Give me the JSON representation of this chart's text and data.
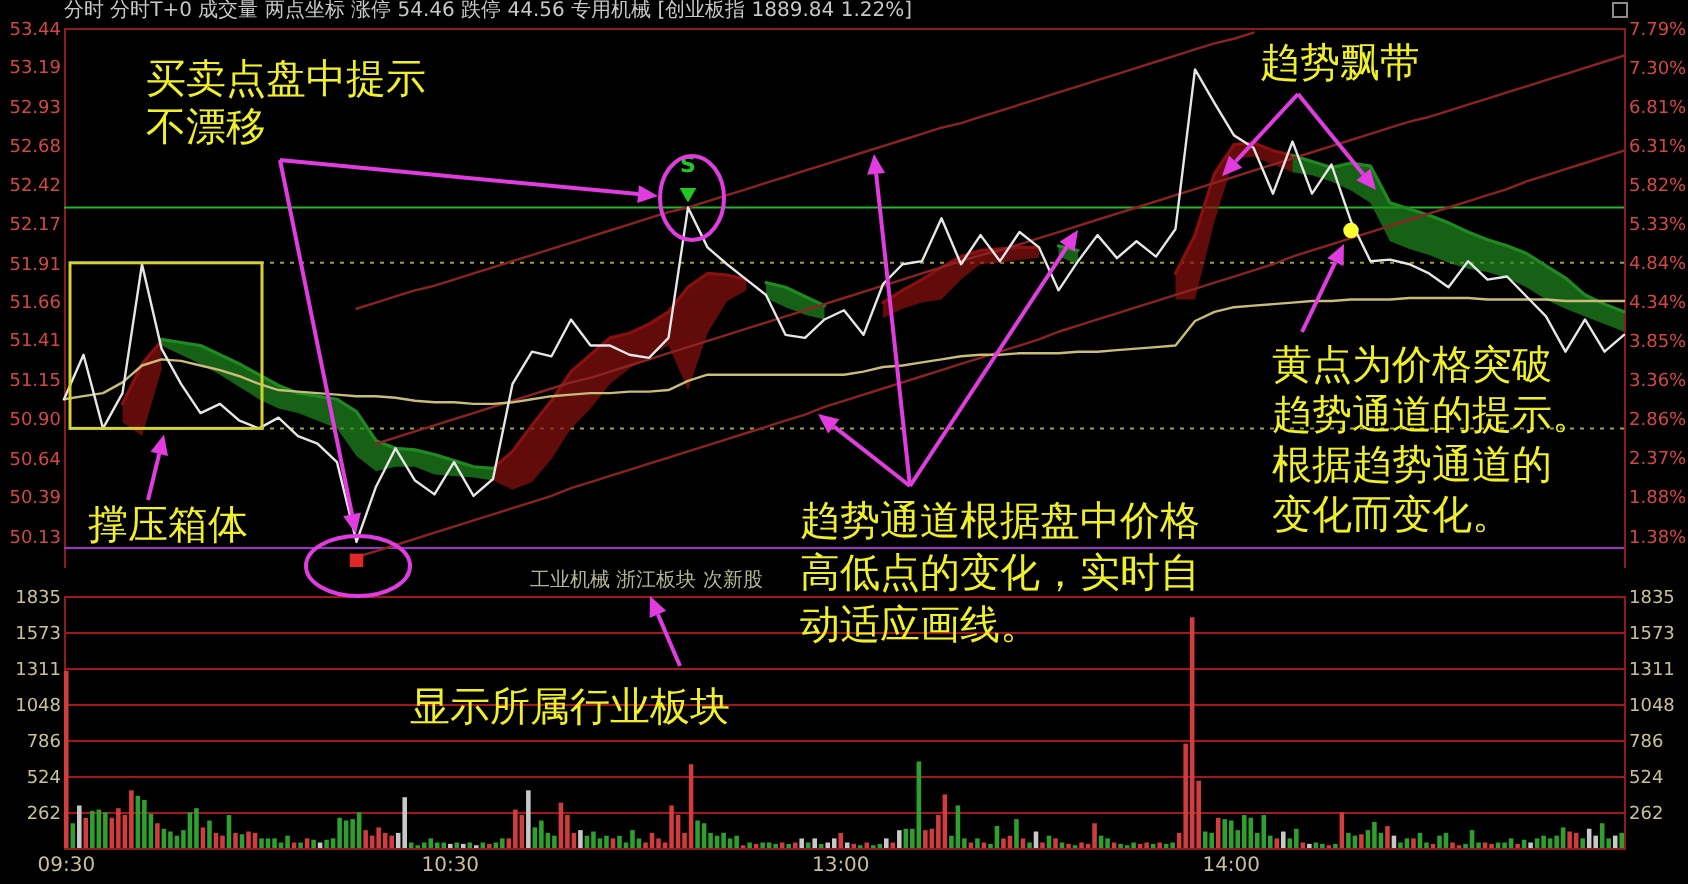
{
  "chart_data": [
    {
      "type": "line",
      "title": "分时 分时T+0 成交量 两点坐标 涨停 54.46 跌停 44.56 专用机械 [创业板指 1889.84 1.22%]",
      "categories": [
        null,
        null,
        null,
        null,
        null,
        null,
        null,
        null,
        null,
        null,
        null,
        null,
        null,
        null,
        null,
        null,
        null,
        null,
        null,
        null,
        null,
        null,
        null,
        null,
        null,
        null,
        null,
        null,
        null,
        null,
        null,
        null,
        null,
        null,
        null,
        null,
        null,
        null,
        null,
        null,
        null,
        null,
        null,
        null,
        null,
        null,
        null,
        null,
        null,
        null,
        null,
        null,
        null,
        null,
        null,
        null,
        null,
        null,
        null,
        null,
        null,
        null,
        null,
        null,
        null,
        null,
        null,
        null,
        null,
        null,
        null,
        null,
        null,
        null,
        null,
        null,
        null,
        null,
        null,
        null,
        null
      ],
      "ylim": [
        49.92,
        53.44
      ],
      "yticks": [
        50.13,
        50.39,
        50.64,
        {
          "value": 50.9,
          "label": "50.90"
        },
        51.15,
        51.41,
        51.66,
        51.91,
        52.17,
        52.42,
        52.68,
        52.93,
        53.19,
        53.44
      ],
      "y2lim": [
        0.97,
        7.79
      ],
      "y2ticks": [
        {
          "value": 1.38,
          "label": "1.38%"
        },
        {
          "value": 1.88,
          "label": "1.88%"
        },
        {
          "value": 2.37,
          "label": "2.37%"
        },
        {
          "value": 2.86,
          "label": "2.86%"
        },
        {
          "value": 3.36,
          "label": "3.36%"
        },
        {
          "value": 3.85,
          "label": "3.85%"
        },
        {
          "value": 4.34,
          "label": "4.34%"
        },
        {
          "value": 4.84,
          "label": "4.84%"
        },
        {
          "value": 5.33,
          "label": "5.33%"
        },
        {
          "value": 5.82,
          "label": "5.82%"
        },
        {
          "value": 6.31,
          "label": "6.31%"
        },
        {
          "value": 6.81,
          "label": "6.81%"
        },
        {
          "value": 7.3,
          "label": "7.30%"
        },
        {
          "value": 7.79,
          "label": "7.79%"
        }
      ],
      "tick_labels": "y",
      "series": [
        {
          "color": "#8a1010",
          "values": [
            null,
            null,
            null,
            50.99,
            51.25,
            51.4,
            null,
            null,
            null,
            null,
            null,
            null,
            null,
            null,
            null,
            null,
            null,
            null,
            null,
            null,
            null,
            null,
            50.57,
            50.68,
            50.85,
            51.01,
            51.2,
            51.31,
            51.42,
            51.45,
            51.51,
            51.59,
            51.75,
            51.84,
            51.83,
            51.8,
            null,
            null,
            null,
            null,
            null,
            null,
            51.65,
            51.73,
            51.8,
            51.88,
            51.95,
            51.99,
            52.0,
            52.01,
            52.01,
            null,
            null,
            null,
            null,
            null,
            null,
            51.84,
            52.09,
            52.49,
            52.68,
            52.69,
            52.64,
            52.61,
            null,
            null,
            null,
            null,
            null,
            null,
            null,
            null,
            null,
            null,
            null,
            null,
            null,
            null,
            null,
            null,
            null
          ],
          "upper": [
            null,
            null,
            null,
            50.99,
            51.25,
            51.4,
            null,
            null,
            null,
            null,
            null,
            null,
            null,
            null,
            null,
            null,
            null,
            null,
            null,
            null,
            null,
            null,
            50.57,
            50.68,
            50.85,
            51.01,
            51.2,
            51.31,
            51.42,
            51.45,
            51.51,
            51.59,
            51.75,
            51.84,
            51.83,
            51.8,
            null,
            null,
            null,
            null,
            null,
            null,
            51.65,
            51.73,
            51.8,
            51.88,
            51.95,
            51.99,
            52.0,
            52.01,
            52.01,
            null,
            null,
            null,
            null,
            null,
            null,
            51.84,
            52.09,
            52.49,
            52.68,
            52.69,
            52.64,
            52.61,
            null,
            null,
            null,
            null,
            null,
            null,
            null,
            null,
            null,
            null,
            null,
            null,
            null,
            null,
            null,
            null,
            null
          ],
          "lower": [
            null,
            null,
            null,
            50.87,
            50.78,
            51.21,
            null,
            null,
            null,
            null,
            null,
            null,
            null,
            null,
            null,
            null,
            null,
            null,
            null,
            null,
            null,
            null,
            50.49,
            50.43,
            50.48,
            50.63,
            50.83,
            50.96,
            51.12,
            51.22,
            51.3,
            51.37,
            51.08,
            51.45,
            51.66,
            51.73,
            null,
            null,
            null,
            null,
            null,
            null,
            51.55,
            51.61,
            51.65,
            51.67,
            51.8,
            51.9,
            51.91,
            51.93,
            51.94,
            null,
            null,
            null,
            null,
            null,
            null,
            51.67,
            51.67,
            52.18,
            52.59,
            52.6,
            52.55,
            52.5,
            null,
            null,
            null,
            null,
            null,
            null,
            null,
            null,
            null,
            null,
            null,
            null,
            null,
            null,
            null,
            null,
            null
          ]
        },
        {
          "color": "#1f8a1f",
          "values": [
            null,
            null,
            null,
            null,
            null,
            51.41,
            51.39,
            51.37,
            51.31,
            51.25,
            51.18,
            51.11,
            51.06,
            51.04,
            51.02,
            50.94,
            50.75,
            50.7,
            50.69,
            50.66,
            50.62,
            50.58,
            50.57,
            null,
            null,
            null,
            null,
            null,
            null,
            null,
            null,
            null,
            null,
            null,
            null,
            null,
            51.78,
            51.75,
            51.69,
            51.63,
            null,
            null,
            null,
            null,
            null,
            null,
            null,
            null,
            null,
            null,
            null,
            52.02,
            51.99,
            null,
            null,
            null,
            null,
            null,
            null,
            null,
            null,
            null,
            null,
            52.61,
            52.57,
            52.53,
            52.56,
            52.54,
            52.3,
            52.26,
            52.22,
            52.17,
            52.11,
            52.06,
            52.02,
            51.97,
            51.89,
            51.81,
            51.7,
            51.64,
            51.59
          ],
          "upper": [
            null,
            null,
            null,
            null,
            null,
            51.41,
            51.39,
            51.37,
            51.31,
            51.25,
            51.18,
            51.11,
            51.06,
            51.04,
            51.02,
            50.94,
            50.75,
            50.7,
            50.69,
            50.66,
            50.62,
            50.58,
            50.57,
            null,
            null,
            null,
            null,
            null,
            null,
            null,
            null,
            null,
            null,
            null,
            null,
            null,
            51.78,
            51.75,
            51.69,
            51.63,
            null,
            null,
            null,
            null,
            null,
            null,
            null,
            null,
            null,
            null,
            null,
            52.02,
            51.99,
            null,
            null,
            null,
            null,
            null,
            null,
            null,
            null,
            null,
            null,
            52.61,
            52.57,
            52.53,
            52.56,
            52.54,
            52.3,
            52.26,
            52.22,
            52.17,
            52.11,
            52.06,
            52.02,
            51.97,
            51.89,
            51.81,
            51.7,
            51.64,
            51.59
          ],
          "lower": [
            null,
            null,
            null,
            null,
            null,
            51.37,
            51.31,
            51.25,
            51.18,
            51.1,
            51.02,
            50.96,
            50.93,
            50.88,
            50.83,
            50.65,
            50.55,
            50.58,
            50.58,
            50.53,
            50.52,
            50.51,
            50.49,
            null,
            null,
            null,
            null,
            null,
            null,
            null,
            null,
            null,
            null,
            null,
            null,
            null,
            51.68,
            51.62,
            51.57,
            51.54,
            null,
            null,
            null,
            null,
            null,
            null,
            null,
            null,
            null,
            null,
            null,
            51.95,
            51.9,
            null,
            null,
            null,
            null,
            null,
            null,
            null,
            null,
            null,
            null,
            52.5,
            52.48,
            52.44,
            52.38,
            52.3,
            52.05,
            52.0,
            51.96,
            51.91,
            51.87,
            51.85,
            51.81,
            51.75,
            51.67,
            51.61,
            51.56,
            51.51,
            51.46
          ]
        },
        {
          "color": "#8c2323",
          "values": [
            null,
            null,
            null,
            null,
            null,
            null,
            null,
            null,
            null,
            null,
            null,
            null,
            null,
            null,
            null,
            51.61,
            51.65,
            51.69,
            51.73,
            51.76,
            51.8,
            51.84,
            51.88,
            51.92,
            51.96,
            52.0,
            52.04,
            52.08,
            52.12,
            52.16,
            52.2,
            52.24,
            52.27,
            52.31,
            52.35,
            52.39,
            52.43,
            52.47,
            52.51,
            52.55,
            52.59,
            52.63,
            52.67,
            52.71,
            52.75,
            52.79,
            52.82,
            52.86,
            52.9,
            52.94,
            52.98,
            53.02,
            53.06,
            53.1,
            53.14,
            53.18,
            53.22,
            53.26,
            53.3,
            53.34,
            53.37,
            53.41,
            null,
            null,
            null,
            null,
            null,
            null,
            null,
            null,
            null,
            null,
            null,
            null,
            null,
            null,
            null,
            null,
            null,
            null,
            null
          ]
        },
        {
          "color": "#8c2323",
          "values": [
            null,
            null,
            null,
            null,
            null,
            null,
            null,
            null,
            null,
            null,
            null,
            null,
            null,
            null,
            null,
            null,
            50.73,
            50.77,
            50.81,
            50.85,
            50.89,
            50.93,
            50.97,
            51.01,
            51.05,
            51.09,
            51.13,
            51.16,
            51.2,
            51.24,
            51.28,
            51.32,
            51.36,
            51.4,
            51.44,
            51.48,
            51.52,
            51.56,
            51.6,
            51.64,
            51.68,
            51.72,
            51.76,
            51.8,
            51.84,
            51.88,
            51.92,
            51.96,
            51.99,
            52.03,
            52.07,
            52.11,
            52.15,
            52.19,
            52.23,
            52.27,
            52.31,
            52.35,
            52.39,
            52.43,
            52.47,
            52.51,
            52.55,
            52.59,
            52.63,
            52.67,
            52.71,
            52.75,
            52.79,
            52.83,
            52.86,
            52.9,
            52.94,
            52.98,
            53.02,
            53.06,
            53.1,
            53.14,
            53.18,
            53.22,
            53.26
          ]
        },
        {
          "color": "#8c2323",
          "values": [
            null,
            null,
            null,
            null,
            null,
            null,
            null,
            null,
            null,
            null,
            null,
            null,
            null,
            null,
            null,
            49.99,
            50.03,
            50.07,
            50.11,
            50.15,
            50.19,
            50.23,
            50.27,
            50.31,
            50.35,
            50.39,
            50.44,
            50.48,
            50.52,
            50.56,
            50.6,
            50.64,
            50.68,
            50.72,
            50.76,
            50.8,
            50.84,
            50.88,
            50.92,
            50.97,
            51.01,
            51.05,
            51.09,
            51.13,
            51.17,
            51.21,
            51.25,
            51.29,
            51.33,
            51.37,
            51.41,
            51.46,
            51.5,
            51.54,
            51.58,
            51.62,
            51.66,
            51.7,
            51.74,
            51.78,
            51.82,
            51.86,
            51.9,
            51.95,
            51.99,
            52.03,
            52.07,
            52.11,
            52.15,
            52.19,
            52.23,
            52.27,
            52.31,
            52.35,
            52.39,
            52.44,
            52.48,
            52.52,
            52.56,
            52.6,
            52.64
          ]
        },
        {
          "color": "#c8bc78",
          "values": [
            51.02,
            51.04,
            51.06,
            51.13,
            51.24,
            51.28,
            51.27,
            51.24,
            51.21,
            51.17,
            51.12,
            51.08,
            51.07,
            51.06,
            51.05,
            51.04,
            51.04,
            51.03,
            51.01,
            51.0,
            51.0,
            50.99,
            50.99,
            51.0,
            51.02,
            51.04,
            51.05,
            51.06,
            51.06,
            51.07,
            51.07,
            51.08,
            51.14,
            51.18,
            51.18,
            51.18,
            51.18,
            51.18,
            51.18,
            51.18,
            51.18,
            51.2,
            51.23,
            51.24,
            51.26,
            51.28,
            51.3,
            51.31,
            51.31,
            51.32,
            51.32,
            51.32,
            51.33,
            51.33,
            51.34,
            51.35,
            51.36,
            51.37,
            51.53,
            51.59,
            51.62,
            51.63,
            51.64,
            51.65,
            51.66,
            51.66,
            51.67,
            51.67,
            51.67,
            51.68,
            51.68,
            51.68,
            51.68,
            51.67,
            51.67,
            51.67,
            51.67,
            51.66,
            51.66,
            51.66,
            51.66
          ]
        },
        {
          "color": "#e6e6e6",
          "values": [
            51.02,
            51.31,
            50.83,
            51.06,
            51.9,
            51.35,
            51.12,
            50.93,
            50.99,
            50.88,
            50.83,
            50.9,
            50.78,
            50.73,
            50.61,
            50.09,
            50.45,
            50.7,
            50.49,
            50.4,
            50.61,
            50.39,
            50.5,
            51.12,
            51.33,
            51.3,
            51.54,
            51.37,
            51.37,
            51.31,
            51.29,
            51.42,
            52.27,
            52.01,
            51.9,
            51.8,
            51.7,
            51.44,
            51.42,
            51.54,
            51.6,
            51.44,
            51.77,
            51.9,
            51.92,
            52.2,
            51.9,
            52.09,
            51.92,
            52.11,
            52.01,
            51.73,
            51.92,
            52.09,
            51.94,
            52.05,
            51.95,
            52.13,
            53.17,
            52.95,
            52.74,
            52.66,
            52.36,
            52.7,
            52.36,
            52.55,
            52.18,
            51.92,
            51.93,
            51.9,
            51.84,
            51.75,
            51.92,
            51.8,
            51.82,
            51.69,
            51.56,
            51.33,
            51.54,
            51.33,
            51.44
          ]
        },
        {
          "type": "scatter",
          "color": "#22c822",
          "marker": "triangle",
          "values": [
            null,
            null,
            null,
            null,
            null,
            null,
            null,
            null,
            null,
            null,
            null,
            null,
            null,
            null,
            null,
            null,
            null,
            null,
            null,
            null,
            null,
            null,
            null,
            null,
            null,
            null,
            null,
            null,
            null,
            null,
            null,
            null,
            52.35,
            null,
            null,
            null,
            null,
            null,
            null,
            null,
            null,
            null,
            null,
            null,
            null,
            null,
            null,
            null,
            null,
            null,
            null,
            null,
            null,
            null,
            null,
            null,
            null,
            null,
            null,
            null,
            null,
            null,
            null,
            null,
            null,
            null,
            null,
            null,
            null,
            null,
            null,
            null,
            null,
            null,
            null,
            null,
            null,
            null,
            null,
            null,
            null
          ]
        },
        {
          "type": "scatter",
          "color": "#e02828",
          "marker": "square",
          "values": [
            null,
            null,
            null,
            null,
            null,
            null,
            null,
            null,
            null,
            null,
            null,
            null,
            null,
            null,
            null,
            49.97,
            null,
            null,
            null,
            null,
            null,
            null,
            null,
            null,
            null,
            null,
            null,
            null,
            null,
            null,
            null,
            null,
            null,
            null,
            null,
            null,
            null,
            null,
            null,
            null,
            null,
            null,
            null,
            null,
            null,
            null,
            null,
            null,
            null,
            null,
            null,
            null,
            null,
            null,
            null,
            null,
            null,
            null,
            null,
            null,
            null,
            null,
            null,
            null,
            null,
            null,
            null,
            null,
            null,
            null,
            null,
            null,
            null,
            null,
            null,
            null,
            null,
            null,
            null,
            null,
            null
          ]
        },
        {
          "type": "scatter",
          "color": "#ffff32",
          "marker": "circle",
          "values": [
            null,
            null,
            null,
            null,
            null,
            null,
            null,
            null,
            null,
            null,
            null,
            null,
            null,
            null,
            null,
            null,
            null,
            null,
            null,
            null,
            null,
            null,
            null,
            null,
            null,
            null,
            null,
            null,
            null,
            null,
            null,
            null,
            null,
            null,
            null,
            null,
            null,
            null,
            null,
            null,
            null,
            null,
            null,
            null,
            null,
            null,
            null,
            null,
            null,
            null,
            null,
            null,
            null,
            null,
            null,
            null,
            null,
            null,
            null,
            null,
            null,
            null,
            null,
            null,
            null,
            null,
            52.12,
            null,
            null,
            null,
            null,
            null,
            null,
            null,
            null,
            null,
            null,
            null,
            null,
            null,
            null
          ]
        }
      ],
      "ref_lines": [
        {
          "axis": "y",
          "value": 52.27,
          "color": "#28b428"
        },
        {
          "axis": "y",
          "value": 51.91,
          "color": "#a0a040",
          "line_style": "dotted"
        },
        {
          "axis": "y",
          "value": 50.83,
          "color": "#a0a040",
          "line_style": "dotted"
        },
        {
          "axis": "y",
          "value": 50.05,
          "color": "#a032c8"
        }
      ],
      "annotations": [
        "买卖点盘中提示不漂移",
        {
          "text": "撑压箱体",
          "y": 50.83
        },
        "趋势通道根据盘中价格高低点的变化，实时自动适应画线。",
        {
          "text": "趋势飘带",
          "y": 52.5
        },
        "黄点为价格突破趋势通道的提示。根据趋势通道的变化而变化。",
        "工业机械 浙江板块 次新股",
        {
          "text": "S",
          "y": 52.35
        }
      ]
    },
    {
      "type": "bar",
      "categories": [
        "09:30",
        null,
        null,
        null,
        null,
        null,
        null,
        null,
        null,
        null,
        null,
        null,
        null,
        null,
        null,
        null,
        null,
        null,
        null,
        null,
        null,
        null,
        null,
        null,
        null,
        null,
        null,
        null,
        null,
        null,
        null,
        null,
        null,
        null,
        null,
        null,
        null,
        null,
        null,
        null,
        null,
        null,
        null,
        null,
        null,
        null,
        null,
        null,
        null,
        null,
        null,
        null,
        null,
        null,
        null,
        null,
        null,
        null,
        null,
        "10:30",
        null,
        null,
        null,
        null,
        null,
        null,
        null,
        null,
        null,
        null,
        null,
        null,
        null,
        null,
        null,
        null,
        null,
        null,
        null,
        null,
        null,
        null,
        null,
        null,
        null,
        null,
        null,
        null,
        null,
        null,
        null,
        null,
        null,
        null,
        null,
        null,
        null,
        null,
        null,
        null,
        null,
        null,
        null,
        null,
        null,
        null,
        null,
        null,
        null,
        null,
        null,
        null,
        null,
        null,
        null,
        null,
        null,
        null,
        null,
        "13:00",
        null,
        null,
        null,
        null,
        null,
        null,
        null,
        null,
        null,
        null,
        null,
        null,
        null,
        null,
        null,
        null,
        null,
        null,
        null,
        null,
        null,
        null,
        null,
        null,
        null,
        null,
        null,
        null,
        null,
        null,
        null,
        null,
        null,
        null,
        null,
        null,
        null,
        null,
        null,
        null,
        null,
        null,
        null,
        null,
        null,
        null,
        null,
        null,
        null,
        null,
        null,
        null,
        null,
        null,
        null,
        null,
        null,
        null,
        null,
        "14:00",
        null,
        null,
        null,
        null,
        null,
        null,
        null,
        null,
        null,
        null,
        null,
        null,
        null,
        null,
        null,
        null,
        null,
        null,
        null,
        null,
        null,
        null,
        null,
        null,
        null,
        null,
        null,
        null,
        null,
        null,
        null,
        null,
        null,
        null,
        null,
        null,
        null,
        null,
        null,
        null,
        null,
        null,
        null,
        null,
        null,
        null,
        null,
        null,
        null,
        null,
        null,
        null,
        null,
        null,
        null,
        null,
        null,
        null,
        null,
        null
      ],
      "ylim": [
        0,
        1835
      ],
      "yticks": [
        262,
        524,
        786,
        1048,
        1311,
        1573,
        1835
      ],
      "y2lim": [
        0,
        1835
      ],
      "y2ticks": [
        262,
        524,
        786,
        1048,
        1311,
        1573,
        1835
      ],
      "grid": "y",
      "values": [
        1290,
        180,
        310,
        220,
        270,
        280,
        260,
        220,
        290,
        240,
        420,
        380,
        350,
        250,
        180,
        140,
        120,
        90,
        130,
        260,
        290,
        150,
        200,
        110,
        90,
        240,
        110,
        100,
        120,
        110,
        70,
        70,
        70,
        40,
        90,
        40,
        40,
        70,
        60,
        40,
        60,
        70,
        220,
        200,
        210,
        260,
        130,
        90,
        150,
        110,
        90,
        110,
        370,
        40,
        20,
        40,
        70,
        40,
        40,
        30,
        40,
        30,
        40,
        20,
        40,
        30,
        40,
        70,
        70,
        280,
        240,
        420,
        150,
        200,
        110,
        90,
        330,
        240,
        110,
        130,
        90,
        120,
        70,
        90,
        70,
        90,
        40,
        130,
        70,
        40,
        110,
        70,
        40,
        310,
        240,
        110,
        610,
        200,
        180,
        110,
        90,
        110,
        70,
        90,
        20,
        40,
        30,
        40,
        40,
        30,
        40,
        30,
        40,
        70,
        40,
        70,
        30,
        40,
        70,
        110,
        40,
        30,
        20,
        40,
        20,
        30,
        70,
        40,
        130,
        140,
        140,
        630,
        130,
        140,
        240,
        390,
        90,
        310,
        70,
        40,
        70,
        40,
        30,
        160,
        70,
        90,
        210,
        70,
        40,
        120,
        40,
        90,
        70,
        40,
        30,
        20,
        40,
        30,
        180,
        90,
        70,
        40,
        30,
        20,
        40,
        30,
        40,
        30,
        40,
        30,
        40,
        110,
        760,
        1680,
        490,
        120,
        110,
        220,
        210,
        200,
        130,
        240,
        220,
        110,
        240,
        90,
        70,
        120,
        70,
        140,
        40,
        30,
        40,
        30,
        20,
        30,
        260,
        110,
        90,
        100,
        130,
        190,
        110,
        160,
        90,
        40,
        70,
        70,
        110,
        40,
        30,
        90,
        110,
        40,
        20,
        30,
        130,
        40,
        40,
        30,
        40,
        40,
        70,
        30,
        60,
        40,
        70,
        90,
        70,
        90,
        150,
        120,
        110,
        70,
        140,
        90,
        180,
        70,
        90,
        110
      ],
      "colors": [
        "#d23c3c",
        "#2ea02e",
        "#c8c8c8",
        "#d23c3c",
        "#2ea02e",
        "#2ea02e",
        "#2ea02e",
        "#d23c3c",
        "#d23c3c",
        "#d23c3c",
        "#d23c3c",
        "#2ea02e",
        "#2ea02e",
        "#2ea02e",
        "#d23c3c",
        "#2ea02e",
        "#2ea02e",
        "#2ea02e",
        "#2ea02e",
        "#2ea02e",
        "#2ea02e",
        "#d23c3c",
        "#2ea02e",
        "#d23c3c",
        "#d23c3c",
        "#2ea02e",
        "#d23c3c",
        "#2ea02e",
        "#d23c3c",
        "#d23c3c",
        "#2ea02e",
        "#2ea02e",
        "#2ea02e",
        "#2ea02e",
        "#2ea02e",
        "#d23c3c",
        "#2ea02e",
        "#d23c3c",
        "#2ea02e",
        "#c8c8c8",
        "#2ea02e",
        "#2ea02e",
        "#2ea02e",
        "#2ea02e",
        "#2ea02e",
        "#2ea02e",
        "#d23c3c",
        "#d23c3c",
        "#d23c3c",
        "#d23c3c",
        "#d23c3c",
        "#c8c8c8",
        "#c8c8c8",
        "#2ea02e",
        "#2ea02e",
        "#2ea02e",
        "#2ea02e",
        "#2ea02e",
        "#2ea02e",
        "#c8c8c8",
        "#2ea02e",
        "#c8c8c8",
        "#2ea02e",
        "#c8c8c8",
        "#2ea02e",
        "#d23c3c",
        "#2ea02e",
        "#2ea02e",
        "#d23c3c",
        "#d23c3c",
        "#d23c3c",
        "#c8c8c8",
        "#2ea02e",
        "#2ea02e",
        "#2ea02e",
        "#2ea02e",
        "#d23c3c",
        "#d23c3c",
        "#d23c3c",
        "#c8c8c8",
        "#2ea02e",
        "#2ea02e",
        "#2ea02e",
        "#2ea02e",
        "#d23c3c",
        "#2ea02e",
        "#2ea02e",
        "#2ea02e",
        "#2ea02e",
        "#d23c3c",
        "#d23c3c",
        "#d23c3c",
        "#d23c3c",
        "#d23c3c",
        "#d23c3c",
        "#d23c3c",
        "#d23c3c",
        "#2ea02e",
        "#2ea02e",
        "#2ea02e",
        "#2ea02e",
        "#2ea02e",
        "#2ea02e",
        "#2ea02e",
        "#d23c3c",
        "#2ea02e",
        "#d23c3c",
        "#2ea02e",
        "#2ea02e",
        "#2ea02e",
        "#d23c3c",
        "#2ea02e",
        "#d23c3c",
        "#c8c8c8",
        "#2ea02e",
        "#c8c8c8",
        "#2ea02e",
        "#c8c8c8",
        "#c8c8c8",
        "#d23c3c",
        "#c8c8c8",
        "#d23c3c",
        "#2ea02e",
        "#d23c3c",
        "#2ea02e",
        "#2ea02e",
        "#c8c8c8",
        "#d23c3c",
        "#c8c8c8",
        "#2ea02e",
        "#2ea02e",
        "#2ea02e",
        "#d23c3c",
        "#d23c3c",
        "#d23c3c",
        "#d23c3c",
        "#2ea02e",
        "#2ea02e",
        "#2ea02e",
        "#d23c3c",
        "#2ea02e",
        "#d23c3c",
        "#2ea02e",
        "#2ea02e",
        "#d23c3c",
        "#d23c3c",
        "#2ea02e",
        "#d23c3c",
        "#2ea02e",
        "#c8c8c8",
        "#d23c3c",
        "#2ea02e",
        "#d23c3c",
        "#2ea02e",
        "#d23c3c",
        "#2ea02e",
        "#d23c3c",
        "#d23c3c",
        "#d23c3c",
        "#2ea02e",
        "#2ea02e",
        "#d23c3c",
        "#2ea02e",
        "#2ea02e",
        "#2ea02e",
        "#d23c3c",
        "#d23c3c",
        "#2ea02e",
        "#d23c3c",
        "#2ea02e",
        "#2ea02e",
        "#d23c3c",
        "#d23c3c",
        "#d23c3c",
        "#d23c3c",
        "#2ea02e",
        "#2ea02e",
        "#d23c3c",
        "#2ea02e",
        "#2ea02e",
        "#2ea02e",
        "#2ea02e",
        "#2ea02e",
        "#2ea02e",
        "#2ea02e",
        "#2ea02e",
        "#d23c3c",
        "#c8c8c8",
        "#2ea02e",
        "#2ea02e",
        "#d23c3c",
        "#c8c8c8",
        "#2ea02e",
        "#2ea02e",
        "#d23c3c",
        "#2ea02e",
        "#d23c3c",
        "#2ea02e",
        "#2ea02e",
        "#d23c3c",
        "#2ea02e",
        "#2ea02e",
        "#2ea02e",
        "#d23c3c",
        "#c8c8c8",
        "#2ea02e",
        "#2ea02e",
        "#d23c3c",
        "#2ea02e",
        "#2ea02e",
        "#d23c3c",
        "#2ea02e",
        "#2ea02e",
        "#d23c3c",
        "#d23c3c",
        "#2ea02e",
        "#2ea02e",
        "#2ea02e",
        "#d23c3c",
        "#d23c3c",
        "#2ea02e",
        "#2ea02e",
        "#2ea02e",
        "#d23c3c",
        "#2ea02e",
        "#c8c8c8",
        "#2ea02e",
        "#2ea02e",
        "#2ea02e",
        "#2ea02e",
        "#2ea02e",
        "#d23c3c",
        "#d23c3c",
        "#2ea02e",
        "#c8c8c8",
        "#c8c8c8",
        "#2ea02e",
        "#2ea02e",
        "#c8c8c8",
        "#2ea02e"
      ],
      "annotations": [
        "显示所属行业板块"
      ]
    }
  ]
}
